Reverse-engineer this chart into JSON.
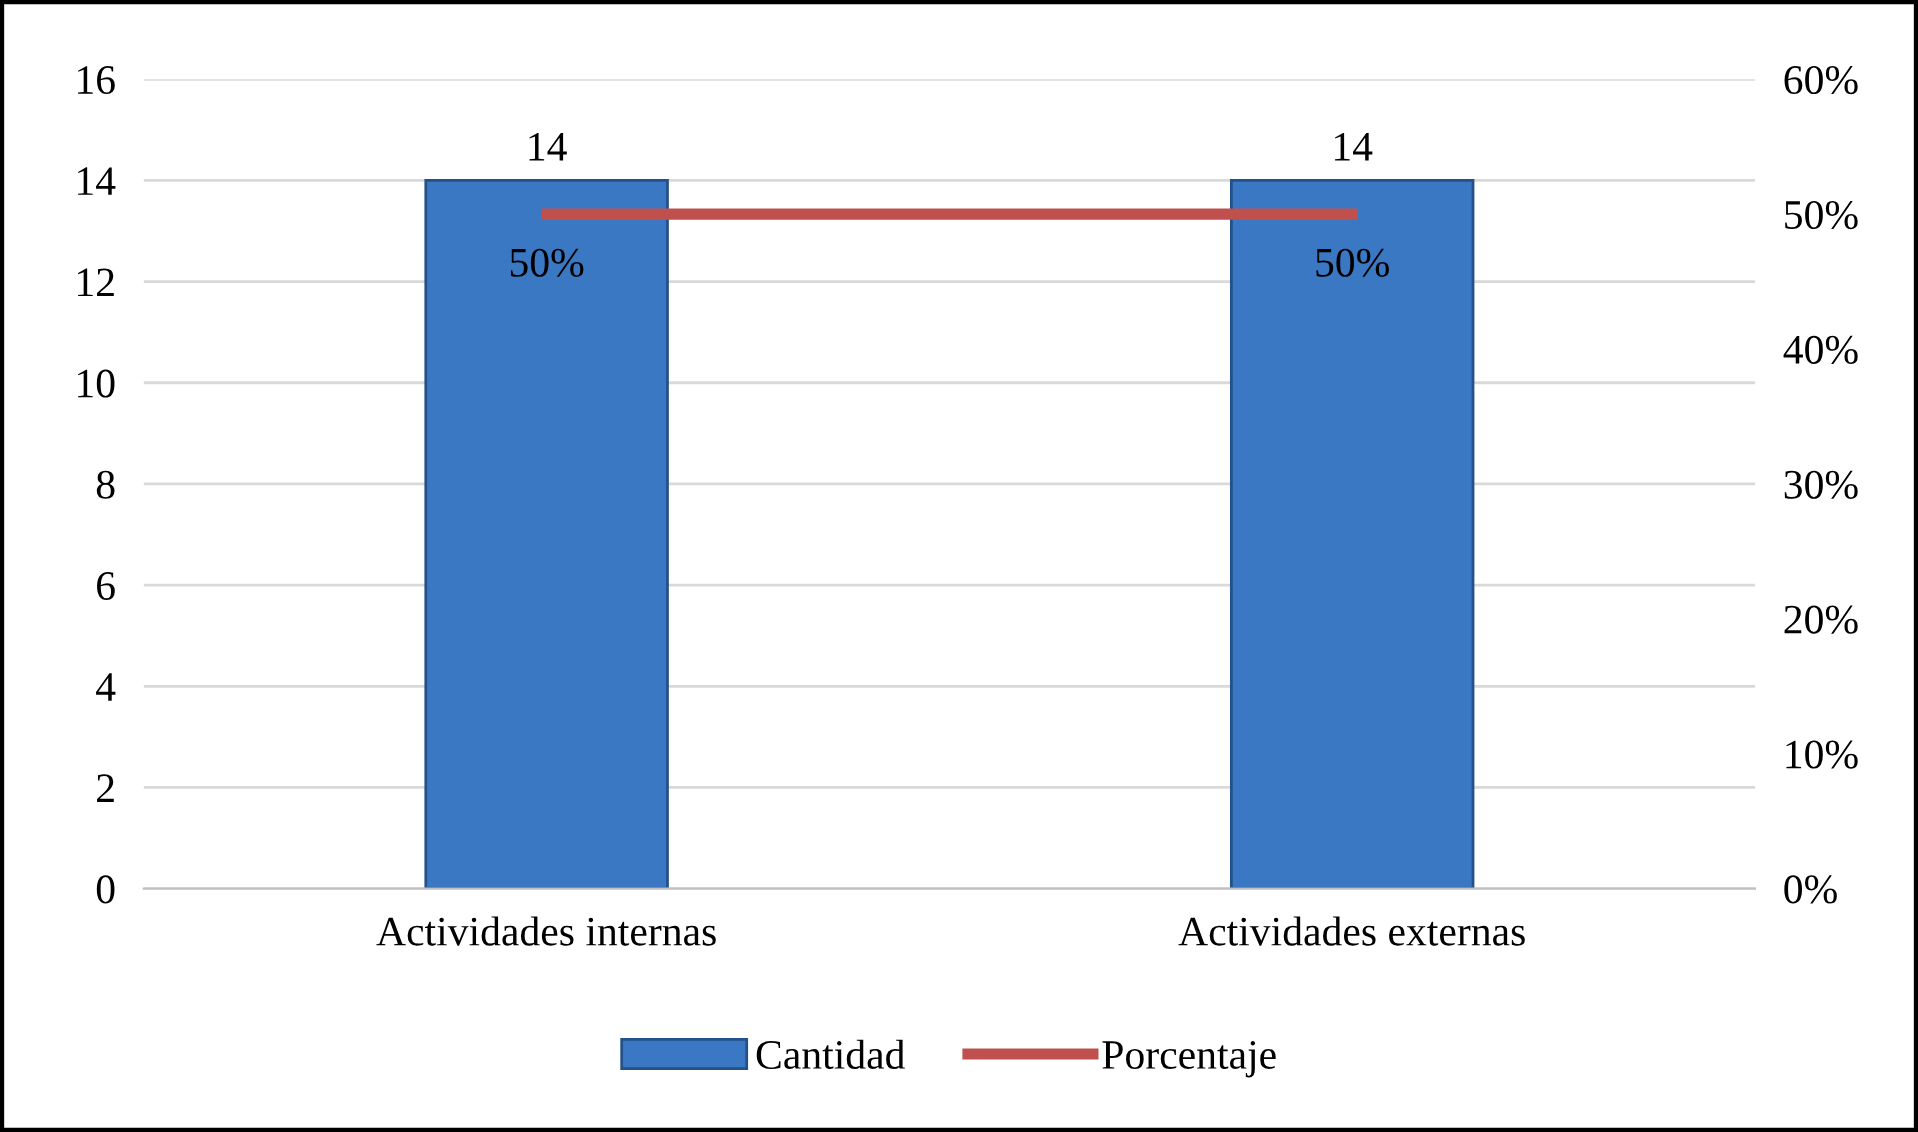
{
  "chart_data": {
    "type": "bar",
    "categories": [
      "Actividades internas",
      "Actividades externas"
    ],
    "series": [
      {
        "name": "Cantidad",
        "color": "#3a78c4",
        "values": [
          14,
          14
        ],
        "value_labels": [
          "14",
          "14"
        ]
      },
      {
        "name": "Porcentaje",
        "type": "line",
        "axis": "y2",
        "color": "#c0504d",
        "values": [
          50,
          50
        ],
        "value_labels": [
          "50%",
          "50%"
        ]
      }
    ],
    "ylim": [
      0,
      16
    ],
    "yticks": [
      0,
      2,
      4,
      6,
      8,
      10,
      12,
      14,
      16
    ],
    "y2lim": [
      0,
      60
    ],
    "y2ticks": [
      {
        "value": 0,
        "label": "0%"
      },
      {
        "value": 10,
        "label": "10%"
      },
      {
        "value": 20,
        "label": "20%"
      },
      {
        "value": 30,
        "label": "30%"
      },
      {
        "value": 40,
        "label": "40%"
      },
      {
        "value": 50,
        "label": "50%"
      },
      {
        "value": 60,
        "label": "60%"
      }
    ],
    "grid": "y",
    "legend": "bottom",
    "marker": "none",
    "line_style": "solid"
  }
}
